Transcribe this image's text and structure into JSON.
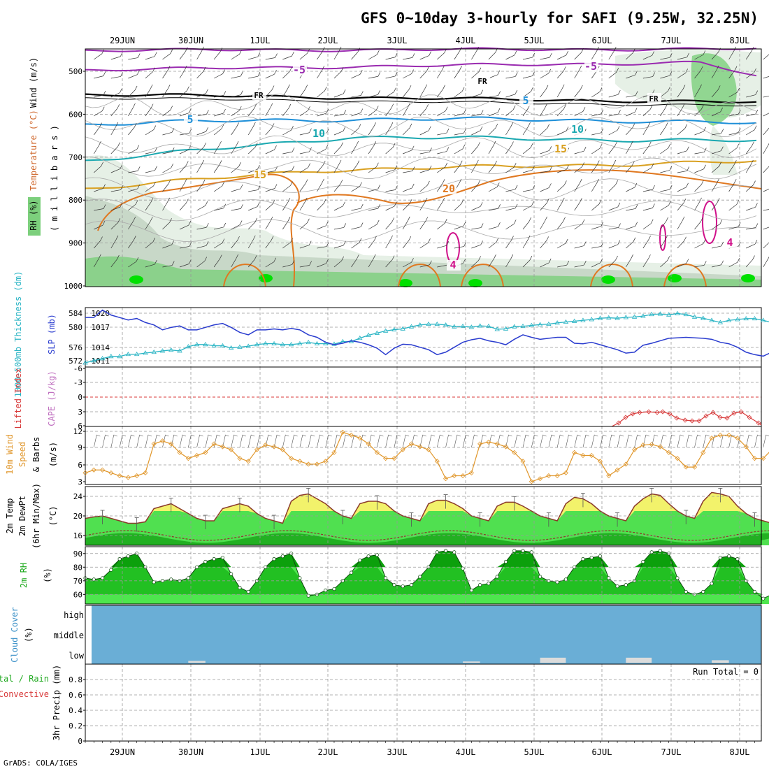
{
  "title": "GFS 0~10day 3-hourly for SAFI (9.25W, 32.25N)",
  "footer": "GrADS: COLA/IGES",
  "colors": {
    "rh_light": "#e6f0e6",
    "rh_mid": "#c8d8c8",
    "rh_dark": "#a8c0a8",
    "rh_green": "#7ccf7c",
    "rh_bright": "#00e000",
    "temp_m5": "#9a2bb0",
    "temp_0": "#000000",
    "temp_5": "#1e8fd8",
    "temp_10": "#1aa8b0",
    "temp_15": "#d9a020",
    "temp_20": "#e07820",
    "slp": "#2a3ccf",
    "thick": "#29b4c4",
    "wind": "#e0962a",
    "temp_fill": "#f2f26b",
    "dew_fill": "#50e050",
    "rh2m_light": "#4ee64e",
    "rh2m_mid": "#22c022",
    "rh2m_dark": "#0ca00c",
    "cloud": "#6aaed6",
    "cloud_bar": "#dcdcdc",
    "li": "#d83a3a"
  },
  "dates": [
    "29JUN",
    "30JUN",
    "1JUL",
    "2JUL",
    "3JUL",
    "4JUL",
    "5JUL",
    "6JUL",
    "7JUL",
    "8JUL"
  ],
  "panels": {
    "upper": {
      "ylabel_wind": "Wind (m/s)",
      "ylabel_temp": "Temperature (°C)",
      "ylabel_units": "( m i l l i b a r s )",
      "ylabel_rh": "RH (%)",
      "ticks": [
        "500",
        "600",
        "700",
        "800",
        "900",
        "1000"
      ],
      "contour_labels": [
        "-5",
        "-5",
        "FR",
        "FR",
        "FR",
        "5",
        "5",
        "10",
        "10",
        "15",
        "15",
        "20",
        "4",
        "4"
      ]
    },
    "slp": {
      "ylabel_thick": "1000-500mb Thickness (dm)",
      "ylabel_slp": "SLP (mb)",
      "left_ticks": [
        "584",
        "580",
        "576",
        "572"
      ],
      "right_ticks": [
        "1020",
        "1017",
        "1014",
        "1011"
      ]
    },
    "cape": {
      "ylabel_li": "Lifted Index",
      "ylabel_cape": "CAPE (J/kg)",
      "ticks": [
        "-6",
        "-3",
        "0",
        "3",
        "6"
      ]
    },
    "wind10": {
      "ylabel_1": "10m Wind",
      "ylabel_2": "Speed",
      "ylabel_3": "& Barbs",
      "ylabel_units": "(m/s)",
      "ticks": [
        "12",
        "9",
        "6",
        "3"
      ]
    },
    "temp2m": {
      "ylabel_1": "2m Temp",
      "ylabel_2": "2m DewPt",
      "ylabel_3": "(6hr Min/Max)",
      "ylabel_units": "(°C)",
      "ticks": [
        "24",
        "20",
        "16"
      ]
    },
    "rh2m": {
      "ylabel": "2m RH",
      "ylabel_units": "(%)",
      "ticks": [
        "90",
        "80",
        "70",
        "60"
      ]
    },
    "cloud": {
      "ylabel_1": "Cloud Cover",
      "ylabel_units": "(%)",
      "levels": [
        "high",
        "middle",
        "low"
      ]
    },
    "precip": {
      "ylabel_1": "Total / Rain",
      "ylabel_2": "Convective",
      "ylabel_3": "3hr Precip (mm)",
      "run_total": "Run Total = 0",
      "ticks": [
        "0.8",
        "0.6",
        "0.4",
        "0.2",
        "0"
      ]
    }
  },
  "chart_data": [
    {
      "type": "line",
      "title": "SLP (mb)",
      "ylim": [
        1009,
        1021
      ],
      "x_start": "28JUN 12Z",
      "x_step_hours": 3,
      "values": [
        1019,
        1019,
        1020.5,
        1019.5,
        1019,
        1018.5,
        1018.8,
        1018,
        1017.5,
        1016.5,
        1017,
        1017.3,
        1016.5,
        1016.5,
        1017,
        1017.5,
        1017.8,
        1017,
        1016,
        1015.5,
        1016.5,
        1016.5,
        1016.7,
        1016.5,
        1016.8,
        1016.5,
        1015.5,
        1015,
        1014,
        1013.5,
        1013.8,
        1014.3,
        1014,
        1013.5,
        1012.8,
        1011.5,
        1012.8,
        1013.6,
        1013.5,
        1013,
        1012.5,
        1011.5,
        1012,
        1013,
        1014,
        1014.5,
        1014.8,
        1014.3,
        1014,
        1013.5,
        1014.6,
        1015.5,
        1015,
        1014.6,
        1014.8,
        1015,
        1015,
        1013.8,
        1013.7,
        1014,
        1013.5,
        1013,
        1012.5,
        1011.8,
        1012,
        1013.4,
        1013.8,
        1014.3,
        1014.8,
        1014.9,
        1015,
        1014.9,
        1014.8,
        1014.6,
        1014,
        1013.7,
        1013,
        1012,
        1011.5,
        1011.2,
        1012,
        1013,
        1013.8,
        1014.1,
        1014.3,
        1014.1,
        1014.2
      ],
      "series_name": "SLP"
    },
    {
      "type": "line",
      "title": "1000-500mb Thickness (dm)",
      "ylim": [
        571,
        585
      ],
      "values": [
        572,
        572.5,
        573,
        573.5,
        573.5,
        574,
        574,
        574.3,
        574.5,
        574.8,
        575,
        574.8,
        575.8,
        576.3,
        576.3,
        576,
        576,
        575.5,
        575.7,
        575.9,
        576.3,
        576.5,
        576.5,
        576.3,
        576.3,
        576.5,
        576.8,
        576.5,
        576.5,
        576.4,
        577,
        577,
        577.8,
        578.5,
        579,
        579.5,
        579.8,
        580,
        580.5,
        580.9,
        581.1,
        581.1,
        580.9,
        580.5,
        580.6,
        580.4,
        580.7,
        580.6,
        579.9,
        580,
        580.5,
        580.6,
        580.8,
        581,
        581.1,
        581.4,
        581.6,
        581.8,
        582,
        582.2,
        582.5,
        582.6,
        582.5,
        582.7,
        582.8,
        583,
        583.4,
        583.5,
        583.3,
        583.6,
        583.4,
        582.8,
        582.5,
        582,
        581.5,
        582,
        582.2,
        582.4,
        582.4,
        582,
        581.5,
        581.1,
        580.9,
        580.6,
        580.2,
        579.5,
        578.8,
        578,
        577.6,
        577
      ],
      "series_name": "Thickness"
    },
    {
      "type": "line",
      "title": "10m Wind Speed",
      "ylim": [
        2.5,
        12.5
      ],
      "values": [
        4.5,
        5,
        5,
        4.5,
        4,
        3.7,
        4,
        4.5,
        9.5,
        10,
        9.5,
        8,
        7,
        7.5,
        8,
        9.5,
        9,
        8.5,
        7,
        6.5,
        8.5,
        9.3,
        9,
        8.5,
        7,
        6.5,
        6,
        6,
        6.5,
        8,
        11.5,
        11,
        10.5,
        9.5,
        8,
        7,
        7,
        8.5,
        9.5,
        9,
        8.5,
        6.5,
        3.5,
        4,
        4,
        4.5,
        9.5,
        9.8,
        9.5,
        9,
        8,
        6.5,
        3,
        3.5,
        4,
        4,
        4.5,
        8,
        7.5,
        7.5,
        6.5,
        4,
        5,
        6,
        8.5,
        9.3,
        9.4,
        9,
        8,
        7,
        5.5,
        5.5,
        8,
        10.5,
        11,
        11,
        10.5,
        9,
        7,
        7,
        8.5,
        11.5,
        11,
        10,
        9.5,
        8,
        5.5,
        5,
        5,
        5
      ],
      "series_name": "Wind Speed"
    },
    {
      "type": "area",
      "title": "2m Temp",
      "ylim": [
        14,
        26
      ],
      "values": [
        19.5,
        19.8,
        20,
        19.5,
        19,
        18.5,
        18.5,
        18.8,
        21.5,
        22,
        22.5,
        21.5,
        20.5,
        19.5,
        19,
        19,
        21.5,
        22,
        22.5,
        22,
        20.5,
        19.5,
        19,
        18.5,
        23,
        24.2,
        24.5,
        23.5,
        22.5,
        21,
        20,
        19.5,
        22.5,
        23,
        23,
        22.5,
        21,
        20,
        19.5,
        19,
        22.5,
        23.2,
        23.2,
        22.5,
        21.5,
        20,
        19.5,
        19,
        22,
        22.8,
        22.8,
        22,
        21,
        20,
        19.5,
        19,
        22.5,
        23.8,
        23.5,
        22.5,
        21,
        20,
        19.5,
        19,
        22,
        23.5,
        24.5,
        24.2,
        22.5,
        21,
        20,
        19.5,
        23,
        24.8,
        24.5,
        24,
        22,
        20.5,
        19.5,
        19,
        18.5,
        18.3,
        18
      ],
      "series_name": "2m Temp"
    },
    {
      "type": "area",
      "title": "2m RH",
      "ylim": [
        53,
        95
      ],
      "values": [
        72,
        71,
        72,
        78,
        86,
        88,
        90,
        80,
        69,
        70,
        71,
        70,
        72,
        80,
        84,
        86,
        87,
        75,
        65,
        62,
        70,
        80,
        86,
        88,
        90,
        72,
        59,
        60,
        63,
        64,
        70,
        76,
        85,
        88,
        89,
        72,
        67,
        66,
        67,
        73,
        80,
        91,
        92,
        91,
        79,
        63,
        67,
        68,
        73,
        84,
        92,
        92,
        91,
        73,
        70,
        69,
        71,
        80,
        86,
        87,
        88,
        72,
        66,
        67,
        70,
        84,
        91,
        92,
        90,
        72,
        62,
        60,
        62,
        68,
        87,
        88,
        86,
        70,
        62,
        57,
        60,
        58,
        70,
        85,
        90,
        90
      ]
    },
    {
      "type": "bar",
      "title": "Cloud Cover",
      "levels": [
        "low",
        "middle",
        "high"
      ],
      "low_bars": [
        [
          12,
          14,
          3
        ],
        [
          44,
          46,
          2
        ],
        [
          53,
          56,
          8
        ],
        [
          63,
          66,
          8
        ],
        [
          73,
          75,
          4
        ],
        [
          80,
          83,
          3
        ]
      ],
      "middle_bars": [
        [
          96,
          97,
          20
        ],
        [
          97,
          98,
          40
        ],
        [
          98,
          100,
          20
        ],
        [
          100,
          101,
          12
        ]
      ]
    },
    {
      "type": "bar",
      "title": "3hr Precip (mm)",
      "ylim": [
        0,
        1
      ],
      "values": []
    }
  ]
}
